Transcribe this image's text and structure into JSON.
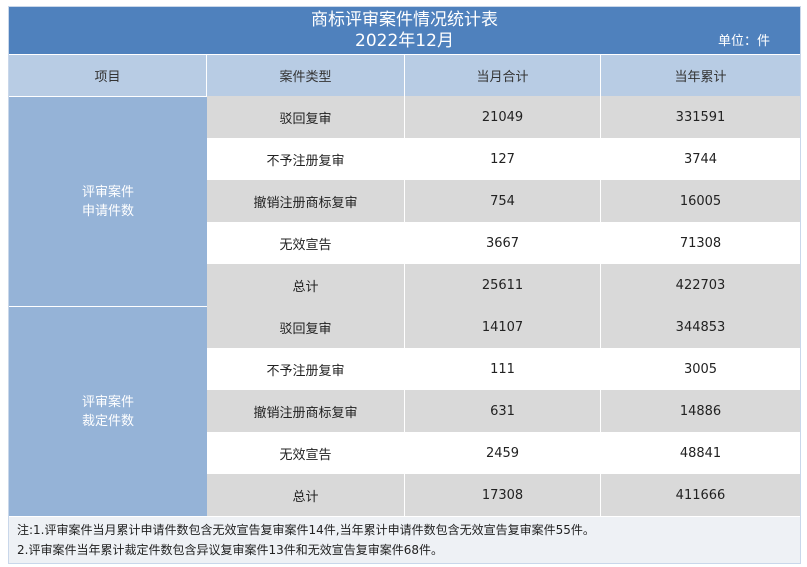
{
  "title": {
    "line1": "商标评审案件情况统计表",
    "line2": "2022年12月",
    "unit": "单位：件"
  },
  "headers": {
    "item": "项目",
    "case_type": "案件类型",
    "month_total": "当月合计",
    "year_total": "当年累计"
  },
  "groups": [
    {
      "label_line1": "评审案件",
      "label_line2": "申请件数",
      "rows": [
        {
          "type": "驳回复审",
          "month": "21049",
          "year": "331591"
        },
        {
          "type": "不予注册复审",
          "month": "127",
          "year": "3744"
        },
        {
          "type": "撤销注册商标复审",
          "month": "754",
          "year": "16005"
        },
        {
          "type": "无效宣告",
          "month": "3667",
          "year": "71308"
        },
        {
          "type": "总计",
          "month": "25611",
          "year": "422703"
        }
      ]
    },
    {
      "label_line1": "评审案件",
      "label_line2": "裁定件数",
      "rows": [
        {
          "type": "驳回复审",
          "month": "14107",
          "year": "344853"
        },
        {
          "type": "不予注册复审",
          "month": "111",
          "year": "3005"
        },
        {
          "type": "撤销注册商标复审",
          "month": "631",
          "year": "14886"
        },
        {
          "type": "无效宣告",
          "month": "2459",
          "year": "48841"
        },
        {
          "type": "总计",
          "month": "17308",
          "year": "411666"
        }
      ]
    }
  ],
  "notes": [
    "注:1.评审案件当月累计申请件数包含无效宣告复审案件14件,当年累计申请件数包含无效宣告复审案件55件。",
    "2.评审案件当年累计裁定件数包含异议复审案件13件和无效宣告复审案件68件。"
  ],
  "colors": {
    "title_bg": "#4f81bd",
    "header_bg": "#b8cce4",
    "group_bg": "#95b3d7",
    "row_shade": "#d9d9d9",
    "notes_bg": "#eef1f5"
  }
}
